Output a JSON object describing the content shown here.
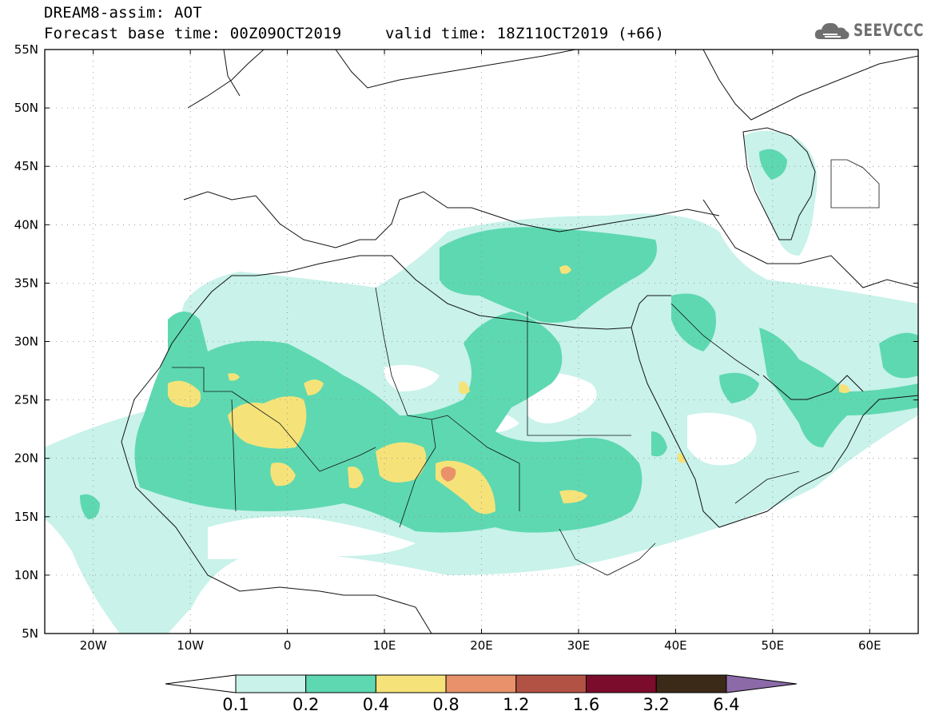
{
  "header": {
    "line1": "DREAM8-assim: AOT",
    "line2_left": "Forecast base time: 00Z09OCT2019",
    "line2_right": "valid time: 18Z11OCT2019 (+66)"
  },
  "logo": {
    "icon": "cloud-icon",
    "text": "SEEVCCC"
  },
  "map": {
    "extent": {
      "lon": [
        -25,
        65
      ],
      "lat": [
        5,
        55
      ]
    },
    "lat_labels": [
      "55N",
      "50N",
      "45N",
      "40N",
      "35N",
      "30N",
      "25N",
      "20N",
      "15N",
      "10N",
      "5N"
    ],
    "lon_labels": [
      "20W",
      "10W",
      "0",
      "10E",
      "20E",
      "30E",
      "40E",
      "50E",
      "60E"
    ],
    "grid": true
  },
  "colorbar": {
    "ticks": [
      "0.1",
      "0.2",
      "0.4",
      "0.8",
      "1.2",
      "1.6",
      "3.2",
      "6.4"
    ],
    "colors": [
      "#ffffff",
      "#c8f2ea",
      "#5ed8b0",
      "#f5e37a",
      "#e8916a",
      "#b25244",
      "#7c0c2c",
      "#3c2a18",
      "#8c6aa8"
    ]
  }
}
